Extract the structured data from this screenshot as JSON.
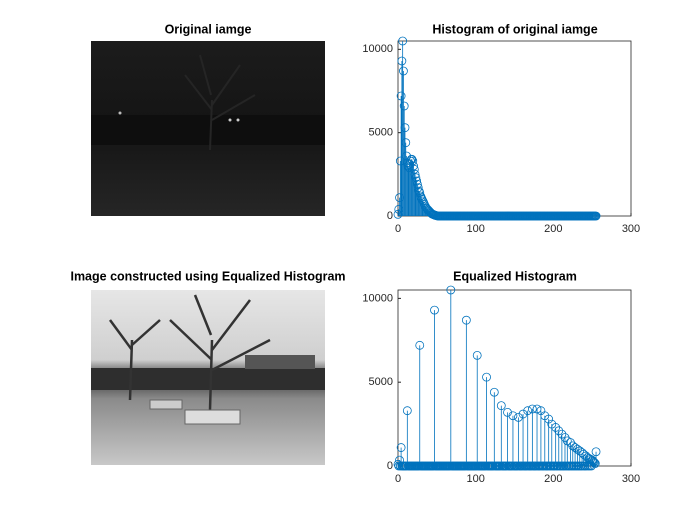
{
  "chart_data": [
    {
      "type": "image",
      "title": "Original iamge"
    },
    {
      "type": "stem",
      "title": "Histogram of original iamge",
      "color": "#0072bd",
      "xlim": [
        0,
        300
      ],
      "xticks": [
        0,
        100,
        200,
        300
      ],
      "ylim": [
        0,
        10500
      ],
      "yticks": [
        0,
        5000,
        10000
      ],
      "x": [
        0,
        1,
        2,
        3,
        4,
        5,
        6,
        7,
        8,
        9,
        10,
        11,
        12,
        13,
        14,
        15,
        16,
        17,
        18,
        19,
        20,
        21,
        22,
        23,
        24,
        25,
        26,
        27,
        28,
        29,
        30,
        31,
        32,
        33,
        34,
        35,
        36,
        37,
        38,
        39,
        40,
        41,
        42,
        43,
        44,
        45,
        46,
        47,
        48,
        49,
        50,
        51,
        52,
        53,
        54,
        55,
        56,
        57,
        58,
        59,
        60,
        61,
        62,
        63,
        64,
        65,
        66,
        67,
        68,
        69,
        70,
        71,
        72,
        73,
        74,
        75,
        76,
        77,
        78,
        79,
        80,
        81,
        82,
        83,
        84,
        85,
        86,
        87,
        88,
        89,
        90,
        91,
        92,
        93,
        94,
        95,
        96,
        97,
        98,
        99,
        100,
        101,
        102,
        103,
        104,
        105,
        106,
        107,
        108,
        109,
        110,
        111,
        112,
        113,
        114,
        115,
        116,
        117,
        118,
        119,
        120,
        121,
        122,
        123,
        124,
        125,
        126,
        127,
        128,
        129,
        130,
        131,
        132,
        133,
        134,
        135,
        136,
        137,
        138,
        139,
        140,
        141,
        142,
        143,
        144,
        145,
        146,
        147,
        148,
        149,
        150,
        151,
        152,
        153,
        154,
        155,
        156,
        157,
        158,
        159,
        160,
        161,
        162,
        163,
        164,
        165,
        166,
        167,
        168,
        169,
        170,
        171,
        172,
        173,
        174,
        175,
        176,
        177,
        178,
        179,
        180,
        181,
        182,
        183,
        184,
        185,
        186,
        187,
        188,
        189,
        190,
        191,
        192,
        193,
        194,
        195,
        196,
        197,
        198,
        199,
        200,
        201,
        202,
        203,
        204,
        205,
        206,
        207,
        208,
        209,
        210,
        211,
        212,
        213,
        214,
        215,
        216,
        217,
        218,
        219,
        220,
        221,
        222,
        223,
        224,
        225,
        226,
        227,
        228,
        229,
        230,
        231,
        232,
        233,
        234,
        235,
        236,
        237,
        238,
        239,
        240,
        241,
        242,
        243,
        244,
        245,
        246,
        247,
        248,
        249,
        250,
        251,
        252,
        253,
        254,
        255
      ],
      "values": [
        100,
        400,
        1100,
        3300,
        7200,
        9300,
        10500,
        8700,
        6600,
        5300,
        4400,
        3600,
        3200,
        3000,
        2900,
        3100,
        3300,
        3400,
        3400,
        3300,
        3000,
        2800,
        2500,
        2300,
        2100,
        1900,
        1700,
        1500,
        1400,
        1200,
        1100,
        1000,
        900,
        800,
        700,
        600,
        500,
        450,
        400,
        350,
        300,
        250,
        200,
        150,
        120,
        100,
        80,
        60,
        40,
        30,
        20,
        0,
        0,
        0,
        0,
        0,
        0,
        0,
        0,
        0,
        0,
        0,
        0,
        0,
        0,
        0,
        0,
        0,
        0,
        0,
        0,
        0,
        0,
        0,
        0,
        0,
        0,
        0,
        0,
        0,
        0,
        0,
        0,
        0,
        0,
        0,
        0,
        0,
        0,
        0,
        0,
        0,
        0,
        0,
        0,
        0,
        0,
        0,
        0,
        0,
        0,
        0,
        0,
        0,
        0,
        0,
        0,
        0,
        0,
        0,
        0,
        0,
        0,
        0,
        0,
        0,
        0,
        0,
        0,
        0,
        0,
        0,
        0,
        0,
        0,
        0,
        0,
        0,
        0,
        0,
        0,
        0,
        0,
        0,
        0,
        0,
        0,
        0,
        0,
        0,
        0,
        0,
        0,
        0,
        0,
        0,
        0,
        0,
        0,
        0,
        0,
        0,
        0,
        0,
        0,
        0,
        0,
        0,
        0,
        0,
        0,
        0,
        0,
        0,
        0,
        0,
        0,
        0,
        0,
        0,
        0,
        0,
        0,
        0,
        0,
        0,
        0,
        0,
        0,
        0,
        0,
        0,
        0,
        0,
        0,
        0,
        0,
        0,
        0,
        0,
        0,
        0,
        0,
        0,
        0,
        0,
        0,
        0,
        0,
        0,
        0,
        0,
        0,
        0,
        0,
        0,
        0,
        0,
        0,
        0,
        0,
        0,
        0,
        0,
        0,
        0,
        0,
        0,
        0,
        0,
        0,
        0,
        0,
        0,
        0,
        0,
        0,
        0,
        0,
        0,
        0,
        0,
        0,
        0,
        0,
        0,
        0,
        0,
        0,
        0,
        0,
        0,
        0,
        0,
        0,
        0,
        0,
        0,
        0,
        0,
        0,
        0,
        0,
        0,
        0,
        0
      ]
    },
    {
      "type": "image",
      "title": "Image constructed using Equalized Histogram"
    },
    {
      "type": "stem",
      "title": "Equalized Histogram",
      "color": "#0072bd",
      "xlim": [
        0,
        300
      ],
      "xticks": [
        0,
        100,
        200,
        300
      ],
      "ylim": [
        0,
        10500
      ],
      "yticks": [
        0,
        5000,
        10000
      ],
      "x": [
        0,
        1,
        2,
        3,
        4,
        5,
        6,
        7,
        8,
        9,
        10,
        11,
        12,
        13,
        14,
        15,
        16,
        17,
        18,
        19,
        20,
        21,
        22,
        23,
        24,
        25,
        26,
        27,
        28,
        29,
        30,
        31,
        32,
        33,
        34,
        35,
        36,
        37,
        38,
        39,
        40,
        41,
        42,
        43,
        44,
        45,
        46,
        47,
        48,
        49,
        50,
        51,
        52,
        53,
        54,
        55,
        56,
        57,
        58,
        59,
        60,
        61,
        62,
        63,
        64,
        65,
        66,
        67,
        68,
        69,
        70,
        71,
        72,
        73,
        74,
        75,
        76,
        77,
        78,
        79,
        80,
        81,
        82,
        83,
        84,
        85,
        86,
        87,
        88,
        89,
        90,
        91,
        92,
        93,
        94,
        95,
        96,
        97,
        98,
        99,
        100,
        101,
        102,
        103,
        104,
        105,
        106,
        107,
        108,
        109,
        110,
        111,
        112,
        113,
        114,
        115,
        116,
        117,
        118,
        119,
        120,
        121,
        122,
        123,
        124,
        125,
        126,
        127,
        128,
        129,
        130,
        131,
        132,
        133,
        134,
        135,
        136,
        137,
        138,
        139,
        140,
        141,
        142,
        143,
        144,
        145,
        146,
        147,
        148,
        149,
        150,
        151,
        152,
        153,
        154,
        155,
        156,
        157,
        158,
        159,
        160,
        161,
        162,
        163,
        164,
        165,
        166,
        167,
        168,
        169,
        170,
        171,
        172,
        173,
        174,
        175,
        176,
        177,
        178,
        179,
        180,
        181,
        182,
        183,
        184,
        185,
        186,
        187,
        188,
        189,
        190,
        191,
        192,
        193,
        194,
        195,
        196,
        197,
        198,
        199,
        200,
        201,
        202,
        203,
        204,
        205,
        206,
        207,
        208,
        209,
        210,
        211,
        212,
        213,
        214,
        215,
        216,
        217,
        218,
        219,
        220,
        221,
        222,
        223,
        224,
        225,
        226,
        227,
        228,
        229,
        230,
        231,
        232,
        233,
        234,
        235,
        236,
        237,
        238,
        239,
        240,
        241,
        242,
        243,
        244,
        245,
        246,
        247,
        248,
        249,
        250,
        251,
        252,
        253,
        254,
        255
      ],
      "values": [
        100,
        0,
        350,
        0,
        1100,
        0,
        0,
        0,
        0,
        0,
        0,
        0,
        3300,
        0,
        0,
        0,
        0,
        0,
        0,
        0,
        0,
        0,
        0,
        0,
        0,
        0,
        0,
        0,
        7200,
        0,
        0,
        0,
        0,
        0,
        0,
        0,
        0,
        0,
        0,
        0,
        0,
        0,
        0,
        0,
        0,
        0,
        0,
        9300,
        0,
        0,
        0,
        0,
        0,
        0,
        0,
        0,
        0,
        0,
        0,
        0,
        0,
        0,
        0,
        0,
        0,
        0,
        0,
        0,
        10500,
        0,
        0,
        0,
        0,
        0,
        0,
        0,
        0,
        0,
        0,
        0,
        0,
        0,
        0,
        0,
        0,
        0,
        0,
        0,
        8700,
        0,
        0,
        0,
        0,
        0,
        0,
        0,
        0,
        0,
        0,
        0,
        0,
        0,
        6600,
        0,
        0,
        0,
        0,
        0,
        0,
        0,
        0,
        0,
        0,
        0,
        5300,
        0,
        0,
        0,
        0,
        0,
        0,
        0,
        0,
        0,
        4400,
        0,
        0,
        0,
        0,
        0,
        0,
        0,
        0,
        3600,
        0,
        0,
        0,
        0,
        0,
        0,
        0,
        3200,
        0,
        0,
        0,
        0,
        0,
        0,
        3000,
        0,
        0,
        0,
        0,
        0,
        0,
        2900,
        0,
        0,
        0,
        0,
        0,
        3100,
        0,
        0,
        0,
        0,
        0,
        3300,
        0,
        0,
        0,
        0,
        0,
        3400,
        0,
        0,
        0,
        0,
        0,
        3400,
        0,
        0,
        0,
        0,
        3300,
        0,
        0,
        0,
        0,
        3000,
        0,
        0,
        0,
        0,
        2800,
        0,
        0,
        0,
        2500,
        0,
        0,
        0,
        0,
        2300,
        0,
        0,
        0,
        2100,
        0,
        0,
        0,
        1900,
        0,
        0,
        0,
        1700,
        0,
        0,
        1500,
        0,
        0,
        0,
        1400,
        0,
        0,
        1200,
        0,
        0,
        1100,
        0,
        0,
        1000,
        0,
        0,
        900,
        0,
        0,
        800,
        0,
        700,
        0,
        0,
        600,
        0,
        500,
        0,
        450,
        0,
        400,
        0,
        350,
        300,
        250,
        200,
        150,
        850
      ]
    }
  ]
}
